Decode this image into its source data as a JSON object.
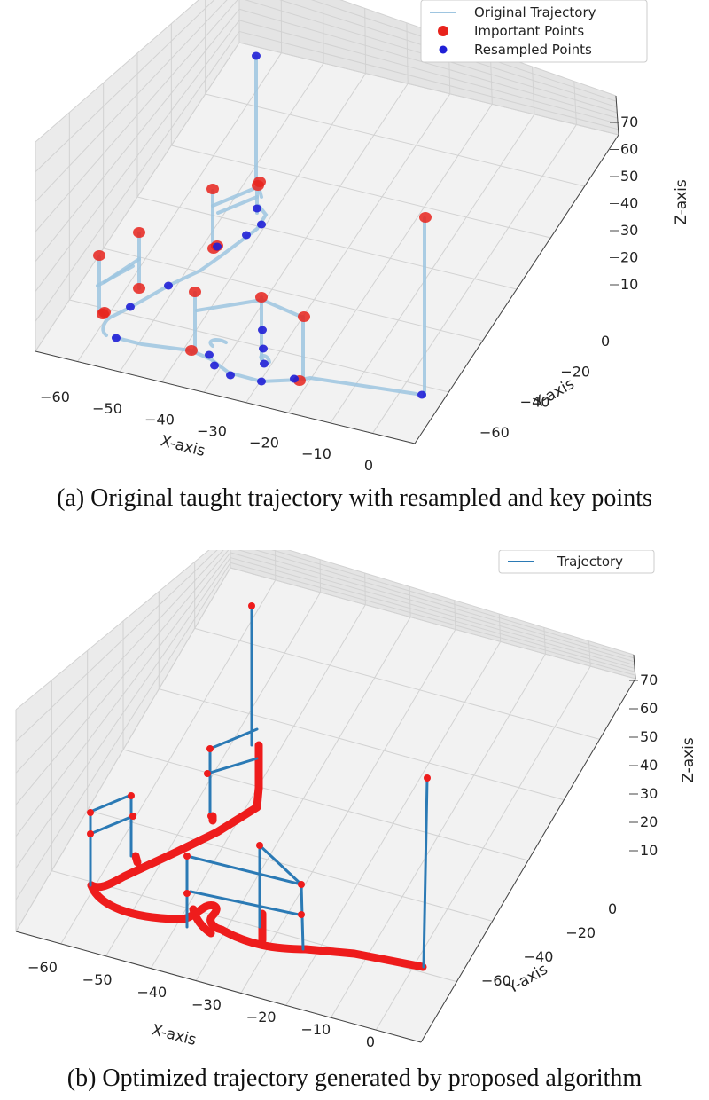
{
  "chart_data": [
    {
      "type": "scatter",
      "chart_kind": "3d line + scatter",
      "caption": "(a) Original taught trajectory with resampled and key points",
      "xlabel": "X-axis",
      "ylabel": "Y-axis",
      "zlabel": "Z-axis",
      "x_ticks": [
        "−60",
        "−50",
        "−40",
        "−30",
        "−20",
        "−10",
        "0"
      ],
      "y_ticks": [
        "0",
        "−20",
        "−40",
        "−60"
      ],
      "z_ticks": [
        "70",
        "60",
        "50",
        "40",
        "30",
        "20",
        "10"
      ],
      "grid": true,
      "legend_position": "top-right",
      "legend": [
        "Original Trajectory",
        "Important Points",
        "Resampled Points"
      ],
      "colors": {
        "trajectory": "#9ec5e0",
        "important": "#e8231c",
        "resampled": "#1f1fd6"
      },
      "series": [
        {
          "name": "Important Points",
          "count": 16
        },
        {
          "name": "Resampled Points",
          "count": 17
        }
      ]
    },
    {
      "type": "line",
      "chart_kind": "3d line",
      "caption": "(b) Optimized trajectory generated by proposed algorithm",
      "xlabel": "X-axis",
      "ylabel": "Y-axis",
      "zlabel": "Z-axis",
      "x_ticks": [
        "−60",
        "−50",
        "−40",
        "−30",
        "−20",
        "−10",
        "0"
      ],
      "y_ticks": [
        "0",
        "−20",
        "−40",
        "−60"
      ],
      "z_ticks": [
        "70",
        "60",
        "50",
        "40",
        "30",
        "20",
        "10"
      ],
      "grid": true,
      "legend_position": "top-right",
      "legend": [
        "Trajectory"
      ],
      "colors": {
        "trajectory": "#2b7ab5",
        "dense_points": "#ee1c1c"
      },
      "series": [
        {
          "name": "Trajectory"
        }
      ]
    }
  ]
}
